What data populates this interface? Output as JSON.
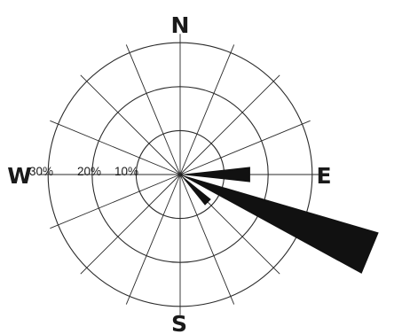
{
  "chart_data": {
    "type": "wind-rose",
    "directions": [
      "N",
      "NNE",
      "NE",
      "ENE",
      "E",
      "ESE",
      "SE",
      "SSE",
      "S",
      "SSW",
      "SW",
      "WSW",
      "W",
      "WNW",
      "NW",
      "NNW"
    ],
    "values": [
      0,
      0,
      0,
      0,
      16,
      47,
      9,
      0,
      0,
      0,
      0,
      0,
      0,
      0,
      0,
      0
    ],
    "unit": "%",
    "rlim": [
      0,
      32
    ],
    "ring_values": [
      10,
      20,
      30
    ],
    "tick_labels": [
      "30%",
      "20%",
      "10%"
    ],
    "cardinal_labels": {
      "north": "N",
      "east": "E",
      "south": "S",
      "west": "W"
    },
    "spoke_count": 16,
    "grid": true,
    "title": "",
    "legend": "none"
  },
  "colors": {
    "petal": "#111111",
    "grid": "#2a2a2a",
    "text": "#1a1a1a",
    "background": "#ffffff"
  }
}
